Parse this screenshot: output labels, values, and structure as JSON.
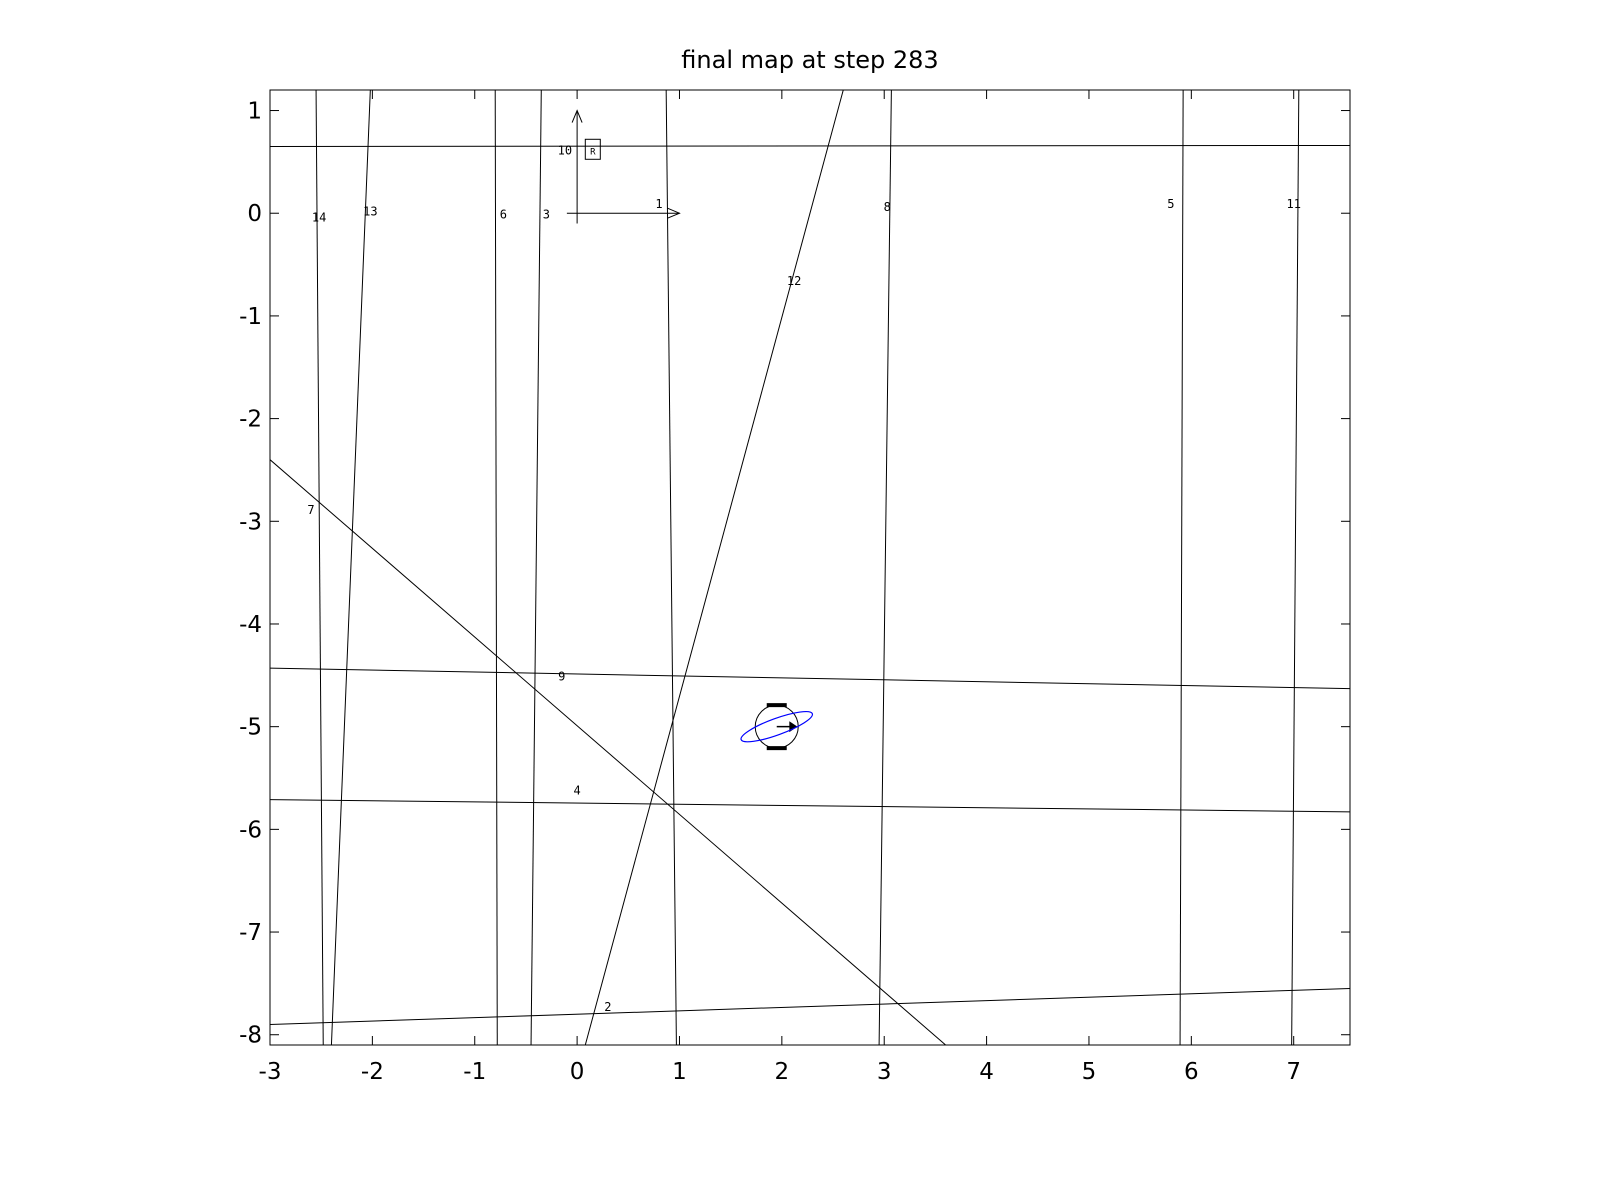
{
  "chart_data": {
    "type": "line",
    "title": "final map at step 283",
    "xlabel": "",
    "ylabel": "",
    "xlim": [
      -3,
      7.55
    ],
    "ylim": [
      -8.1,
      1.2
    ],
    "xticks": [
      "-3",
      "-2",
      "-1",
      "0",
      "1",
      "2",
      "3",
      "4",
      "5",
      "6",
      "7"
    ],
    "yticks": [
      "1",
      "0",
      "-1",
      "-2",
      "-3",
      "-4",
      "-5",
      "-6",
      "-7",
      "-8"
    ],
    "grid": false,
    "legend": "none",
    "map_lines": [
      {
        "label": "1",
        "p1": [
          0.87,
          1.2
        ],
        "p2": [
          0.97,
          -8.1
        ],
        "label_at": [
          0.8,
          0.05
        ]
      },
      {
        "label": "2",
        "p1": [
          -3,
          -7.9
        ],
        "p2": [
          7.55,
          -7.55
        ],
        "label_at": [
          0.3,
          -7.77
        ]
      },
      {
        "label": "3",
        "p1": [
          -0.35,
          1.2
        ],
        "p2": [
          -0.45,
          -8.1
        ],
        "label_at": [
          -0.3,
          -0.05
        ]
      },
      {
        "label": "4",
        "p1": [
          -3,
          -5.71
        ],
        "p2": [
          7.55,
          -5.83
        ],
        "label_at": [
          0.0,
          -5.66
        ]
      },
      {
        "label": "5",
        "p1": [
          5.92,
          1.2
        ],
        "p2": [
          5.89,
          -8.1
        ],
        "label_at": [
          5.8,
          0.05
        ]
      },
      {
        "label": "6",
        "p1": [
          -0.8,
          1.2
        ],
        "p2": [
          -0.78,
          -8.1
        ],
        "label_at": [
          -0.72,
          -0.05
        ]
      },
      {
        "label": "7",
        "p1": [
          -3,
          -2.4
        ],
        "p2": [
          3.6,
          -8.1
        ],
        "label_at": [
          -2.6,
          -2.93
        ]
      },
      {
        "label": "8",
        "p1": [
          3.07,
          1.2
        ],
        "p2": [
          2.95,
          -8.1
        ],
        "label_at": [
          3.03,
          0.02
        ]
      },
      {
        "label": "9",
        "p1": [
          -3,
          -4.43
        ],
        "p2": [
          7.55,
          -4.63
        ],
        "label_at": [
          -0.15,
          -4.55
        ]
      },
      {
        "label": "10",
        "p1": [
          -3,
          0.65
        ],
        "p2": [
          7.55,
          0.66
        ],
        "label_at": [
          -0.12,
          0.57
        ]
      },
      {
        "label": "11",
        "p1": [
          7.05,
          1.2
        ],
        "p2": [
          6.98,
          -8.1
        ],
        "label_at": [
          7.0,
          0.05
        ]
      },
      {
        "label": "12",
        "p1": [
          2.6,
          1.2
        ],
        "p2": [
          0.08,
          -8.1
        ],
        "label_at": [
          2.12,
          -0.7
        ]
      },
      {
        "label": "13",
        "p1": [
          -2.02,
          1.2
        ],
        "p2": [
          -2.4,
          -8.1
        ],
        "label_at": [
          -2.02,
          -0.02
        ]
      },
      {
        "label": "14",
        "p1": [
          -2.55,
          1.2
        ],
        "p2": [
          -2.48,
          -8.1
        ],
        "label_at": [
          -2.52,
          -0.08
        ]
      }
    ],
    "origin_frame": {
      "x_axis": [
        [
          -0.1,
          0.0
        ],
        [
          1.0,
          0.0
        ]
      ],
      "y_axis": [
        [
          0.0,
          -0.1
        ],
        [
          0.0,
          1.0
        ]
      ],
      "label": "R"
    },
    "robot": {
      "x": 1.95,
      "y": -5.0,
      "heading_deg": 0,
      "uncertainty_ellipse": {
        "rx": 0.37,
        "ry": 0.08,
        "angle_deg": -20,
        "color": "#0000ff"
      }
    }
  }
}
